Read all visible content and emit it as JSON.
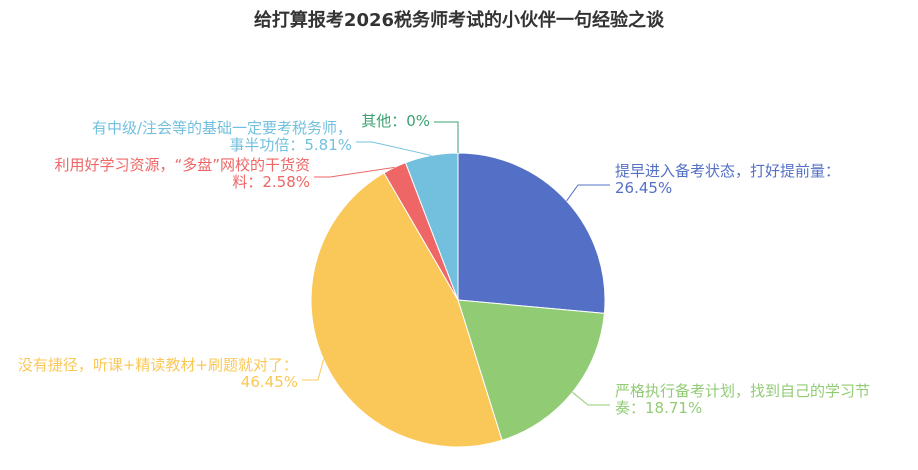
{
  "chart_data": {
    "type": "pie",
    "title": "给打算报考2026税务师考试的小伙伴一句经验之谈",
    "categories": [
      "提早进入备考状态，打好提前量",
      "严格执行备考计划，找到自己的学习节奏",
      "没有捷径，听课+精读教材+刷题就对了",
      "利用好学习资源，“多盘”网校的干货资料",
      "有中级/注会等的基础一定要考税务师，事半功倍",
      "其他"
    ],
    "values": [
      26.45,
      18.71,
      46.45,
      2.58,
      5.81,
      0
    ],
    "value_labels": [
      "：26.45%",
      "：18.71%",
      "：46.45%",
      "：2.58%",
      "：5.81%",
      "：0%"
    ],
    "colors": [
      "#5470c6",
      "#91cc75",
      "#fac858",
      "#ee6666",
      "#73c0de",
      "#3ba272"
    ]
  }
}
